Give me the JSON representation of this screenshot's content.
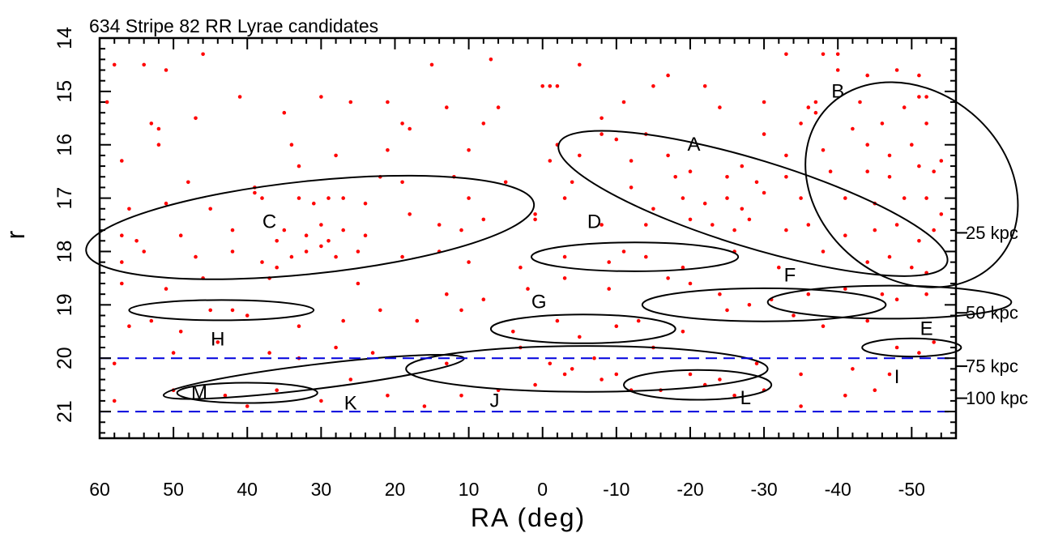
{
  "chart_data": {
    "type": "scatter",
    "title": "634 Stripe 82 RR Lyrae candidates",
    "xlabel": "RA (deg)",
    "ylabel": "r",
    "xlim": [
      60,
      -56
    ],
    "ylim": [
      21.5,
      14
    ],
    "y_inverted": true,
    "x_ticks": [
      60,
      50,
      40,
      30,
      20,
      10,
      0,
      -10,
      -20,
      -30,
      -40,
      -50
    ],
    "y_ticks": [
      14,
      15,
      16,
      17,
      18,
      19,
      20,
      21
    ],
    "right_axis": {
      "labels": [
        {
          "text": "25 kpc",
          "r": 17.65
        },
        {
          "text": "50 kpc",
          "r": 19.15
        },
        {
          "text": "75 kpc",
          "r": 20.15
        },
        {
          "text": "100 kpc",
          "r": 20.75
        }
      ]
    },
    "dashed_lines": [
      {
        "r": 20.0,
        "color": "#0000dd"
      },
      {
        "r": 21.0,
        "color": "#0000dd"
      }
    ],
    "point_color": "#ff0000",
    "regions": [
      {
        "label": "A",
        "cx": -28.5,
        "cy": 17.1,
        "rx": 27.5,
        "ry": 0.82,
        "rot_deg": 17,
        "label_x": -20.5,
        "label_y": 16.0
      },
      {
        "label": "B",
        "cx": -50,
        "cy": 16.75,
        "rx": 15.5,
        "ry": 1.75,
        "rot_deg": 40,
        "label_x": -40,
        "label_y": 15.0
      },
      {
        "label": "C",
        "cx": 31.5,
        "cy": 17.55,
        "rx": 30.5,
        "ry": 0.87,
        "rot_deg": -6,
        "label_x": 37,
        "label_y": 17.45
      },
      {
        "label": "D",
        "cx": -12.5,
        "cy": 18.1,
        "rx": 14,
        "ry": 0.27,
        "rot_deg": 0,
        "label_x": -7,
        "label_y": 17.45
      },
      {
        "label": "E",
        "cx": -50,
        "cy": 19.8,
        "rx": 6.7,
        "ry": 0.17,
        "rot_deg": 0,
        "label_x": -52,
        "label_y": 19.45
      },
      {
        "label": "F",
        "cx": -30,
        "cy": 19.0,
        "rx": 16.5,
        "ry": 0.31,
        "rot_deg": 0,
        "label_x": -33.5,
        "label_y": 18.45
      },
      {
        "label": "G",
        "cx": -5.5,
        "cy": 19.45,
        "rx": 12.5,
        "ry": 0.27,
        "rot_deg": 0,
        "label_x": 0.5,
        "label_y": 18.95
      },
      {
        "label": "H",
        "cx": 43.5,
        "cy": 19.1,
        "rx": 12.5,
        "ry": 0.19,
        "rot_deg": 0,
        "label_x": 44,
        "label_y": 19.65
      },
      {
        "label": "I",
        "cx": -47,
        "cy": 18.95,
        "rx": 16.5,
        "ry": 0.31,
        "rot_deg": 0,
        "label_x": -48,
        "label_y": 20.35
      },
      {
        "label": "J",
        "cx": -6,
        "cy": 20.2,
        "rx": 24.5,
        "ry": 0.43,
        "rot_deg": 0,
        "label_x": 6.5,
        "label_y": 20.8
      },
      {
        "label": "K",
        "cx": 31,
        "cy": 20.35,
        "rx": 20.5,
        "ry": 0.23,
        "rot_deg": -7,
        "label_x": 26,
        "label_y": 20.85
      },
      {
        "label": "L",
        "cx": -21,
        "cy": 20.5,
        "rx": 10,
        "ry": 0.28,
        "rot_deg": 0,
        "label_x": -27.5,
        "label_y": 20.75
      },
      {
        "label": "M",
        "cx": 40,
        "cy": 20.65,
        "rx": 9.5,
        "ry": 0.19,
        "rot_deg": 0,
        "label_x": 46.5,
        "label_y": 20.65
      }
    ],
    "points": [
      [
        58,
        14.5
      ],
      [
        54,
        14.5
      ],
      [
        51,
        14.6
      ],
      [
        46,
        14.3
      ],
      [
        15,
        14.5
      ],
      [
        7,
        14.4
      ],
      [
        -5,
        14.5
      ],
      [
        -33,
        14.3
      ],
      [
        -38,
        14.3
      ],
      [
        -40,
        14.3
      ],
      [
        -48,
        14.6
      ],
      [
        -40,
        14.6
      ],
      [
        -44,
        14.7
      ],
      [
        -51,
        14.7
      ],
      [
        59,
        15.2
      ],
      [
        41,
        15.1
      ],
      [
        30,
        15.1
      ],
      [
        26,
        15.2
      ],
      [
        21,
        15.2
      ],
      [
        13,
        15.3
      ],
      [
        6,
        15.3
      ],
      [
        0,
        14.9
      ],
      [
        -1,
        14.9
      ],
      [
        -2,
        14.9
      ],
      [
        -15,
        14.9
      ],
      [
        -17,
        14.7
      ],
      [
        -11,
        15.2
      ],
      [
        -24,
        15.3
      ],
      [
        -22,
        14.9
      ],
      [
        -30,
        15.2
      ],
      [
        -36,
        15.3
      ],
      [
        -37,
        15.2
      ],
      [
        -43,
        15.2
      ],
      [
        -51,
        15.1
      ],
      [
        -52,
        15.1
      ],
      [
        52,
        15.7
      ],
      [
        53,
        15.6
      ],
      [
        47,
        15.5
      ],
      [
        35,
        15.4
      ],
      [
        19,
        15.6
      ],
      [
        18,
        15.7
      ],
      [
        8,
        15.6
      ],
      [
        -8,
        15.5
      ],
      [
        -8,
        15.8
      ],
      [
        -14,
        15.8
      ],
      [
        -10,
        15.9
      ],
      [
        -2,
        16.0
      ],
      [
        -30,
        15.8
      ],
      [
        -35,
        15.6
      ],
      [
        -37,
        15.4
      ],
      [
        -42,
        15.7
      ],
      [
        -46,
        15.6
      ],
      [
        -49,
        15.3
      ],
      [
        -52,
        15.6
      ],
      [
        57,
        16.3
      ],
      [
        52,
        16.0
      ],
      [
        34,
        16.0
      ],
      [
        28,
        16.2
      ],
      [
        21,
        16.1
      ],
      [
        10,
        16.1
      ],
      [
        -1,
        16.3
      ],
      [
        -5,
        16.2
      ],
      [
        -12,
        16.3
      ],
      [
        -17,
        16.2
      ],
      [
        -27,
        16.4
      ],
      [
        -33,
        16.2
      ],
      [
        -38,
        16.1
      ],
      [
        -44,
        16.0
      ],
      [
        -47,
        16.2
      ],
      [
        -50,
        16.0
      ],
      [
        -51,
        16.4
      ],
      [
        -54,
        16.3
      ],
      [
        48,
        16.7
      ],
      [
        39,
        16.8
      ],
      [
        33,
        16.4
      ],
      [
        22,
        16.6
      ],
      [
        19,
        16.7
      ],
      [
        12,
        16.6
      ],
      [
        5,
        16.7
      ],
      [
        -4,
        16.7
      ],
      [
        -12,
        16.8
      ],
      [
        -18,
        16.6
      ],
      [
        -20,
        16.5
      ],
      [
        -25,
        16.6
      ],
      [
        -29,
        16.7
      ],
      [
        -33,
        16.6
      ],
      [
        -39,
        16.5
      ],
      [
        -44,
        16.5
      ],
      [
        -47,
        16.6
      ],
      [
        -53,
        16.5
      ],
      [
        56,
        17.2
      ],
      [
        51,
        17.1
      ],
      [
        45,
        17.2
      ],
      [
        39,
        16.9
      ],
      [
        38,
        17.0
      ],
      [
        33,
        17.0
      ],
      [
        31,
        17.1
      ],
      [
        29,
        17.0
      ],
      [
        27,
        17.0
      ],
      [
        24,
        17.1
      ],
      [
        18,
        17.3
      ],
      [
        10,
        17.0
      ],
      [
        1,
        17.3
      ],
      [
        -3,
        17.0
      ],
      [
        -15,
        17.2
      ],
      [
        -19,
        17.0
      ],
      [
        -22,
        17.1
      ],
      [
        -25,
        17.0
      ],
      [
        -27,
        17.2
      ],
      [
        -30,
        16.9
      ],
      [
        -35,
        17.0
      ],
      [
        -41,
        17.0
      ],
      [
        -45,
        17.1
      ],
      [
        -49,
        17.0
      ],
      [
        -52,
        17.0
      ],
      [
        -54,
        17.3
      ],
      [
        57,
        17.7
      ],
      [
        55,
        17.8
      ],
      [
        49,
        17.7
      ],
      [
        42,
        17.6
      ],
      [
        36,
        17.8
      ],
      [
        35,
        17.6
      ],
      [
        32,
        17.7
      ],
      [
        30,
        17.5
      ],
      [
        29,
        17.8
      ],
      [
        27,
        17.6
      ],
      [
        24,
        17.7
      ],
      [
        14,
        17.5
      ],
      [
        11,
        17.6
      ],
      [
        8,
        17.4
      ],
      [
        1,
        17.4
      ],
      [
        -8,
        17.5
      ],
      [
        -14,
        17.5
      ],
      [
        -20,
        17.4
      ],
      [
        -23,
        17.5
      ],
      [
        -26,
        17.6
      ],
      [
        -28,
        17.4
      ],
      [
        -33,
        17.6
      ],
      [
        -36,
        17.5
      ],
      [
        -41,
        17.7
      ],
      [
        -45,
        17.6
      ],
      [
        -48,
        17.5
      ],
      [
        -51,
        17.8
      ],
      [
        -53,
        17.6
      ],
      [
        57,
        18.2
      ],
      [
        54,
        18.0
      ],
      [
        47,
        18.1
      ],
      [
        42,
        18.0
      ],
      [
        38,
        18.2
      ],
      [
        36,
        18.3
      ],
      [
        34,
        18.1
      ],
      [
        32,
        18.0
      ],
      [
        30,
        17.9
      ],
      [
        28,
        18.1
      ],
      [
        25,
        18.0
      ],
      [
        19,
        18.1
      ],
      [
        14,
        18.0
      ],
      [
        10,
        18.2
      ],
      [
        3,
        18.3
      ],
      [
        -3,
        18.1
      ],
      [
        -9,
        18.2
      ],
      [
        -11,
        18.0
      ],
      [
        -14,
        18.1
      ],
      [
        -19,
        18.3
      ],
      [
        -26,
        18.0
      ],
      [
        -32,
        18.3
      ],
      [
        -38,
        18.0
      ],
      [
        -44,
        18.2
      ],
      [
        -47,
        18.1
      ],
      [
        -50,
        18.3
      ],
      [
        -52,
        18.4
      ],
      [
        57,
        18.6
      ],
      [
        51,
        18.7
      ],
      [
        46,
        18.5
      ],
      [
        37,
        18.5
      ],
      [
        25,
        18.6
      ],
      [
        13,
        18.8
      ],
      [
        8,
        18.9
      ],
      [
        2,
        18.7
      ],
      [
        -3,
        18.5
      ],
      [
        -9,
        18.7
      ],
      [
        -17,
        18.5
      ],
      [
        -20,
        18.6
      ],
      [
        -24,
        18.8
      ],
      [
        -31,
        18.9
      ],
      [
        -36,
        18.8
      ],
      [
        -41,
        18.7
      ],
      [
        -46,
        18.8
      ],
      [
        -48,
        18.9
      ],
      [
        -52,
        18.8
      ],
      [
        56,
        19.4
      ],
      [
        53,
        19.3
      ],
      [
        49,
        19.5
      ],
      [
        45,
        19.1
      ],
      [
        42,
        19.1
      ],
      [
        40,
        19.2
      ],
      [
        33,
        19.4
      ],
      [
        27,
        19.3
      ],
      [
        22,
        19.1
      ],
      [
        17,
        19.3
      ],
      [
        11,
        19.1
      ],
      [
        4,
        19.5
      ],
      [
        -2,
        19.3
      ],
      [
        -5,
        19.6
      ],
      [
        -10,
        19.4
      ],
      [
        -13,
        19.3
      ],
      [
        -19,
        19.5
      ],
      [
        -25,
        19.1
      ],
      [
        -28,
        19.0
      ],
      [
        -34,
        19.2
      ],
      [
        -38,
        19.4
      ],
      [
        -44,
        19.3
      ],
      [
        -48,
        19.8
      ],
      [
        -51,
        19.9
      ],
      [
        -53,
        19.7
      ],
      [
        58,
        20.1
      ],
      [
        50,
        19.9
      ],
      [
        44,
        19.7
      ],
      [
        37,
        19.9
      ],
      [
        33,
        20.0
      ],
      [
        28,
        19.8
      ],
      [
        23,
        19.9
      ],
      [
        13,
        20.1
      ],
      [
        3,
        19.8
      ],
      [
        -1,
        20.1
      ],
      [
        -4,
        20.2
      ],
      [
        -7,
        20.0
      ],
      [
        -10,
        20.3
      ],
      [
        -15,
        19.8
      ],
      [
        -20,
        20.3
      ],
      [
        -24,
        20.4
      ],
      [
        -29,
        20.1
      ],
      [
        -35,
        20.3
      ],
      [
        -42,
        20.2
      ],
      [
        -47,
        20.3
      ],
      [
        58,
        20.8
      ],
      [
        50,
        20.6
      ],
      [
        43,
        20.7
      ],
      [
        40,
        20.9
      ],
      [
        36,
        20.6
      ],
      [
        30,
        20.8
      ],
      [
        26,
        20.4
      ],
      [
        21,
        20.7
      ],
      [
        16,
        20.9
      ],
      [
        11,
        20.7
      ],
      [
        6,
        20.6
      ],
      [
        1,
        20.5
      ],
      [
        -3,
        20.3
      ],
      [
        -8,
        20.4
      ],
      [
        -12,
        20.6
      ],
      [
        -16,
        20.6
      ],
      [
        -22,
        20.5
      ],
      [
        -26,
        20.7
      ],
      [
        -30,
        20.6
      ],
      [
        -35,
        20.9
      ],
      [
        -41,
        20.7
      ],
      [
        -45,
        20.6
      ]
    ]
  }
}
